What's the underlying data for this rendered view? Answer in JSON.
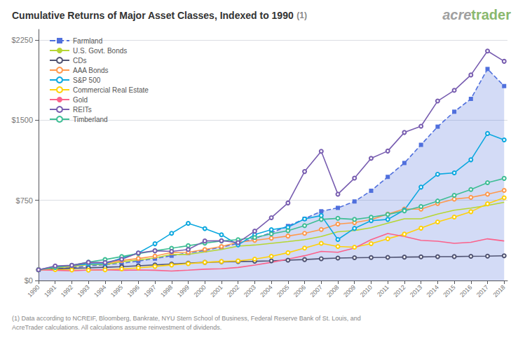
{
  "chart_data": {
    "type": "line",
    "title": "Cumulative Returns of Major Asset Classes, Indexed to 1990",
    "annotations": [
      {
        "text": "(1)"
      },
      {
        "text": "acre",
        "color": "#a0a0a0"
      },
      {
        "text": "trader",
        "color": "#8ab86e"
      },
      {
        "text": "(1) Data according to NCREIF, Bloomberg, Bankrate, NYU Stern School of Business, Federal Reserve Bank of St. Louis, and\nAcreTrader calculations. All calculations assume reinvestment of dividends."
      }
    ],
    "x": [
      1990,
      1991,
      1992,
      1993,
      1994,
      1995,
      1996,
      1997,
      1998,
      1999,
      2000,
      2001,
      2002,
      2003,
      2004,
      2005,
      2006,
      2007,
      2008,
      2009,
      2010,
      2011,
      2012,
      2013,
      2014,
      2015,
      2016,
      2017,
      2018
    ],
    "xlim": [
      1990,
      2018.2
    ],
    "xticks": [
      1990,
      1991,
      1992,
      1993,
      1994,
      1995,
      1996,
      1997,
      1998,
      1999,
      2000,
      2001,
      2002,
      2003,
      2004,
      2005,
      2006,
      2007,
      2008,
      2009,
      2010,
      2011,
      2012,
      2013,
      2014,
      2015,
      2016,
      2017,
      2018
    ],
    "ylim": [
      0,
      2350
    ],
    "yticks": [
      {
        "value": 0,
        "label": "$0"
      },
      {
        "value": 750,
        "label": "$750"
      },
      {
        "value": 1500,
        "label": "$1500"
      },
      {
        "value": 2250,
        "label": "$2250"
      }
    ],
    "grid": true,
    "legend": "upper left",
    "series": [
      {
        "name": "Farmland",
        "type": "area",
        "marker": "square",
        "line_style": "dashed",
        "values": [
          100,
          112,
          122,
          135,
          148,
          162,
          182,
          205,
          232,
          258,
          282,
          312,
          348,
          395,
          448,
          510,
          578,
          648,
          680,
          740,
          840,
          970,
          1100,
          1270,
          1440,
          1580,
          1700,
          1980,
          1820
        ]
      },
      {
        "name": "U.S. Govt. Bonds",
        "type": "line",
        "marker": "none",
        "line_style": "solid",
        "values": [
          100,
          118,
          130,
          148,
          150,
          175,
          192,
          212,
          244,
          244,
          268,
          290,
          322,
          332,
          348,
          364,
          382,
          412,
          456,
          468,
          494,
          536,
          578,
          578,
          622,
          658,
          678,
          702,
          732
        ]
      },
      {
        "name": "CDs",
        "type": "line",
        "marker": "circle",
        "line_style": "solid",
        "values": [
          100,
          108,
          114,
          118,
          124,
          130,
          138,
          146,
          154,
          162,
          170,
          175,
          178,
          180,
          184,
          190,
          196,
          204,
          210,
          213,
          215,
          217,
          219,
          221,
          223,
          224,
          226,
          228,
          231
        ]
      },
      {
        "name": "AAA Bonds",
        "type": "line",
        "marker": "circle",
        "line_style": "solid",
        "values": [
          100,
          120,
          136,
          155,
          158,
          188,
          206,
          228,
          262,
          264,
          290,
          318,
          358,
          376,
          396,
          416,
          442,
          478,
          528,
          542,
          570,
          622,
          670,
          668,
          720,
          762,
          778,
          808,
          844
        ]
      },
      {
        "name": "S&P 500",
        "type": "line",
        "marker": "circle",
        "line_style": "solid",
        "values": [
          100,
          131,
          141,
          155,
          157,
          210,
          258,
          344,
          442,
          535,
          486,
          428,
          334,
          430,
          476,
          498,
          576,
          608,
          384,
          488,
          560,
          572,
          660,
          874,
          995,
          1008,
          1130,
          1376,
          1316
        ]
      },
      {
        "name": "Commercial Real Estate",
        "type": "line",
        "marker": "circle",
        "line_style": "solid",
        "values": [
          100,
          102,
          98,
          97,
          100,
          108,
          118,
          132,
          145,
          158,
          170,
          178,
          184,
          200,
          226,
          260,
          304,
          348,
          318,
          312,
          345,
          390,
          434,
          490,
          548,
          594,
          644,
          718,
          775
        ]
      },
      {
        "name": "Gold",
        "type": "line",
        "marker": "none",
        "line_style": "solid",
        "values": [
          100,
          96,
          90,
          98,
          100,
          96,
          98,
          96,
          89,
          97,
          106,
          110,
          122,
          144,
          170,
          200,
          232,
          272,
          264,
          303,
          382,
          440,
          412,
          376,
          368,
          348,
          358,
          390,
          370
        ]
      },
      {
        "name": "REITs",
        "type": "line",
        "marker": "circle",
        "line_style": "solid",
        "values": [
          100,
          136,
          142,
          170,
          168,
          198,
          258,
          278,
          272,
          290,
          370,
          372,
          355,
          462,
          588,
          726,
          1020,
          1210,
          808,
          958,
          1144,
          1212,
          1386,
          1444,
          1680,
          1780,
          1924,
          2148,
          2052
        ]
      },
      {
        "name": "Timberland",
        "type": "line",
        "marker": "circle",
        "line_style": "solid",
        "values": [
          100,
          122,
          142,
          172,
          196,
          224,
          252,
          278,
          302,
          326,
          350,
          370,
          382,
          402,
          436,
          466,
          514,
          572,
          582,
          572,
          592,
          618,
          652,
          692,
          744,
          798,
          852,
          916,
          956
        ]
      }
    ]
  }
}
